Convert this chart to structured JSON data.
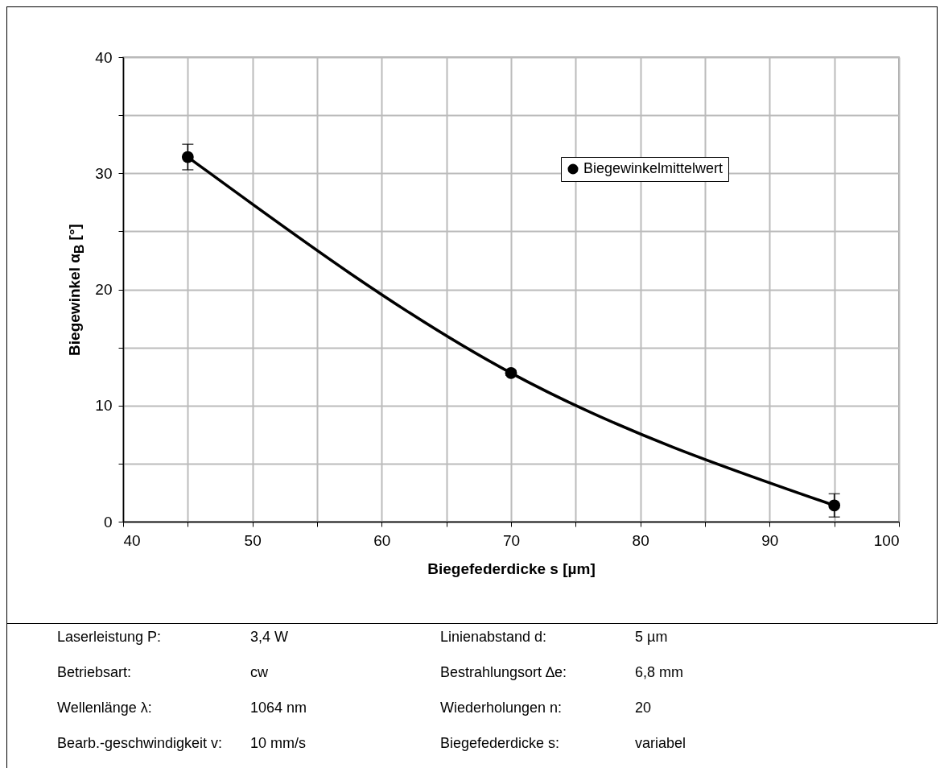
{
  "chart_data": {
    "type": "line",
    "xlabel": "Biegefederdicke s [µm]",
    "ylabel": "Biegewinkel α$_{B}$ [°]",
    "x": [
      45,
      70,
      95
    ],
    "series": [
      {
        "name": "Biegewinkelmittelwert",
        "color": "#000000",
        "values": [
          31.4,
          12.8,
          1.4
        ],
        "errors": [
          1.1,
          0.2,
          1.0
        ]
      }
    ],
    "xlim": [
      40,
      100
    ],
    "ylim": [
      0,
      40
    ],
    "xticks": [
      40,
      {
        "value": 45,
        "label": null
      },
      50,
      {
        "value": 55,
        "label": null
      },
      60,
      {
        "value": 65,
        "label": null
      },
      70,
      {
        "value": 75,
        "label": null
      },
      80,
      {
        "value": 85,
        "label": null
      },
      90,
      {
        "value": 95,
        "label": null
      },
      100
    ],
    "yticks": [
      0,
      {
        "value": 5,
        "label": null
      },
      10,
      {
        "value": 15,
        "label": null
      },
      20,
      {
        "value": 25,
        "label": null
      },
      30,
      {
        "value": 35,
        "label": null
      },
      40
    ],
    "grid": true,
    "legend": "top right",
    "marker": "circle",
    "line_style": "solid",
    "annotations": [
      "Laserleistung P:",
      "3,4 W",
      "Linienabstand d:",
      "5 µm",
      "Betriebsart:",
      "cw",
      "Bestrahlungsort ∆e:",
      "6,8 mm",
      "Wellenlänge λ:",
      "1064 nm",
      "Wiederholungen n:",
      "20",
      "Bearb.-geschwindigkeit v:",
      "10 mm/s",
      "Biegefederdicke s:",
      "variabel"
    ]
  }
}
